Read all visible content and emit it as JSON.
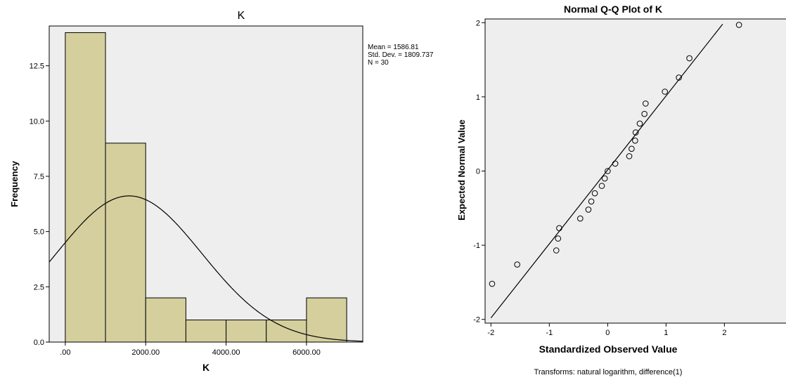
{
  "chart_data": [
    {
      "type": "bar",
      "subtype": "histogram",
      "title": "K",
      "xlabel": "K",
      "ylabel": "Frequency",
      "bins": [
        {
          "from": 0,
          "to": 1000,
          "value": 14
        },
        {
          "from": 1000,
          "to": 2000,
          "value": 9
        },
        {
          "from": 2000,
          "to": 3000,
          "value": 2
        },
        {
          "from": 3000,
          "to": 4000,
          "value": 1
        },
        {
          "from": 4000,
          "to": 5000,
          "value": 1
        },
        {
          "from": 5000,
          "to": 6000,
          "value": 1
        },
        {
          "from": 6000,
          "to": 7000,
          "value": 2
        }
      ],
      "xlim": [
        -400,
        7400
      ],
      "ylim": [
        0,
        14.3
      ],
      "x_ticks": [
        {
          "value": 0,
          "label": ".00"
        },
        {
          "value": 2000,
          "label": "2000.00"
        },
        {
          "value": 4000,
          "label": "4000.00"
        },
        {
          "value": 6000,
          "label": "6000.00"
        }
      ],
      "y_ticks": [
        {
          "value": 0,
          "label": "0.0"
        },
        {
          "value": 2.5,
          "label": "2.5"
        },
        {
          "value": 5,
          "label": "5.0"
        },
        {
          "value": 7.5,
          "label": "7.5"
        },
        {
          "value": 10,
          "label": "10.0"
        },
        {
          "value": 12.5,
          "label": "12.5"
        }
      ],
      "normal_curve": {
        "mean": 1586.81,
        "sd": 1809.737,
        "n": 30,
        "bin_width": 1000
      },
      "stats_lines": [
        "Mean = 1586.81",
        "Std. Dev. = 1809.737",
        "N = 30"
      ],
      "bar_color": "#d4cf9d",
      "background": "#eeeeee",
      "grid": false
    },
    {
      "type": "scatter",
      "subtype": "normal-qq",
      "title": "Normal Q-Q Plot of K",
      "xlabel": "Standardized Observed Value",
      "ylabel": "Expected Normal Value",
      "footnote": "Transforms: natural logarithm, difference(1)",
      "xlim": [
        -2.1,
        3.2
      ],
      "ylim": [
        -2.05,
        2.05
      ],
      "x_ticks": [
        {
          "value": -2,
          "label": "-2"
        },
        {
          "value": -1,
          "label": "-1"
        },
        {
          "value": 0,
          "label": "0"
        },
        {
          "value": 1,
          "label": "1"
        },
        {
          "value": 2,
          "label": "2"
        }
      ],
      "y_ticks": [
        {
          "value": -2,
          "label": "-2"
        },
        {
          "value": -1,
          "label": "-1"
        },
        {
          "value": 0,
          "label": "0"
        },
        {
          "value": 1,
          "label": "1"
        },
        {
          "value": 2,
          "label": "2"
        }
      ],
      "points": [
        {
          "x": -1.98,
          "y": -1.52
        },
        {
          "x": -1.55,
          "y": -1.26
        },
        {
          "x": -0.88,
          "y": -1.07
        },
        {
          "x": -0.85,
          "y": -0.91
        },
        {
          "x": -0.83,
          "y": -0.77
        },
        {
          "x": -0.47,
          "y": -0.64
        },
        {
          "x": -0.33,
          "y": -0.52
        },
        {
          "x": -0.28,
          "y": -0.41
        },
        {
          "x": -0.22,
          "y": -0.3
        },
        {
          "x": -0.1,
          "y": -0.2
        },
        {
          "x": -0.05,
          "y": -0.1
        },
        {
          "x": 0.0,
          "y": 0.0
        },
        {
          "x": 0.13,
          "y": 0.1
        },
        {
          "x": 0.37,
          "y": 0.2
        },
        {
          "x": 0.41,
          "y": 0.3
        },
        {
          "x": 0.47,
          "y": 0.41
        },
        {
          "x": 0.48,
          "y": 0.52
        },
        {
          "x": 0.55,
          "y": 0.64
        },
        {
          "x": 0.63,
          "y": 0.77
        },
        {
          "x": 0.65,
          "y": 0.91
        },
        {
          "x": 0.98,
          "y": 1.07
        },
        {
          "x": 1.22,
          "y": 1.26
        },
        {
          "x": 1.4,
          "y": 1.52
        },
        {
          "x": 2.25,
          "y": 1.97
        }
      ],
      "reference_line": {
        "from": [
          -2,
          -1.98
        ],
        "to": [
          1.97,
          1.98
        ]
      },
      "background": "#eeeeee",
      "grid": false
    }
  ]
}
